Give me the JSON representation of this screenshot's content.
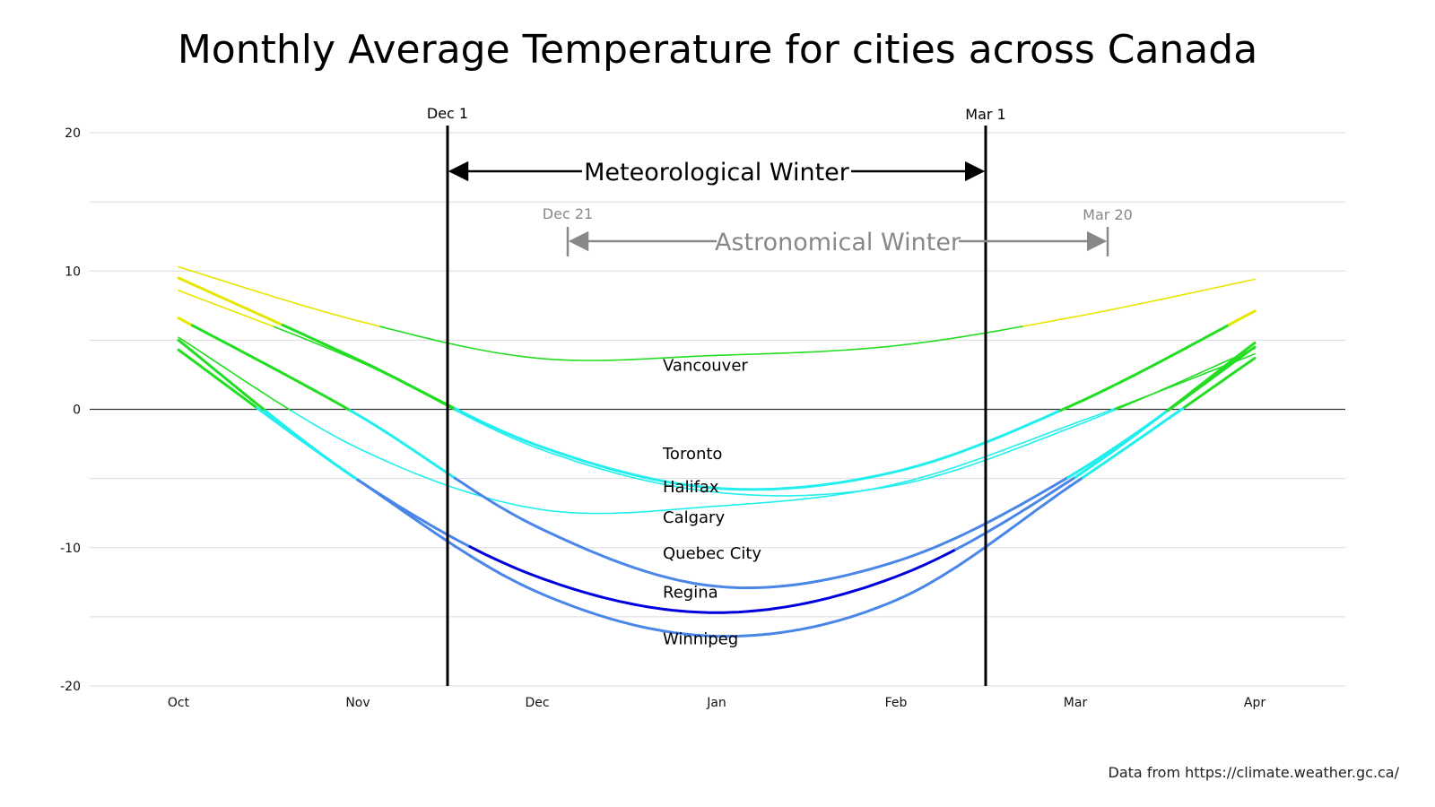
{
  "chart_data": {
    "type": "line",
    "title": "Monthly Average Temperature for cities across Canada",
    "x_categories": [
      "Oct",
      "Nov",
      "Dec",
      "Jan",
      "Feb",
      "Mar",
      "Apr"
    ],
    "ylim": [
      -20,
      20
    ],
    "y_ticks": [
      20,
      10,
      0,
      -10,
      -20
    ],
    "grid": true,
    "series": [
      {
        "name": "Vancouver",
        "values": [
          10.3,
          6.4,
          3.7,
          3.9,
          4.6,
          6.7,
          9.4
        ]
      },
      {
        "name": "Toronto",
        "values": [
          9.5,
          3.6,
          -2.6,
          -5.7,
          -4.5,
          0.4,
          7.1
        ]
      },
      {
        "name": "Halifax",
        "values": [
          8.6,
          3.5,
          -2.8,
          -6.0,
          -5.5,
          -1.2,
          4.4
        ]
      },
      {
        "name": "Calgary",
        "values": [
          5.2,
          -2.8,
          -7.2,
          -7.0,
          -5.4,
          -1.0,
          4.0
        ]
      },
      {
        "name": "Quebec City",
        "values": [
          6.6,
          -0.4,
          -8.5,
          -12.8,
          -11.0,
          -4.6,
          4.5
        ]
      },
      {
        "name": "Regina",
        "values": [
          5.0,
          -5.1,
          -12.1,
          -14.7,
          -12.1,
          -4.9,
          4.8
        ]
      },
      {
        "name": "Winnipeg",
        "values": [
          4.3,
          -5.1,
          -13.2,
          -16.4,
          -13.8,
          -5.3,
          3.7
        ]
      }
    ],
    "series_label_anchor": [
      {
        "name": "Vancouver",
        "y": 2.8
      },
      {
        "name": "Toronto",
        "y": -3.6
      },
      {
        "name": "Halifax",
        "y": -6.0
      },
      {
        "name": "Calgary",
        "y": -8.2
      },
      {
        "name": "Quebec City",
        "y": -10.8
      },
      {
        "name": "Regina",
        "y": -13.6
      },
      {
        "name": "Winnipeg",
        "y": -17.0
      }
    ],
    "annotations": {
      "meteorological": {
        "label": "Meteorological Winter",
        "start_label": "Dec 1",
        "end_label": "Mar 1",
        "start_x": 1.5,
        "end_x": 4.5
      },
      "astronomical": {
        "label": "Astronomical Winter",
        "start_label": "Dec 21",
        "end_label": "Mar 20",
        "start_x": 2.17,
        "end_x": 5.18
      }
    },
    "colors": {
      "warm": "#e6e600",
      "mild": "#22dd22",
      "cool": "#22eeee",
      "cold": "#4a86e8",
      "freezing": "#0000dd",
      "axis_zero": "#333333",
      "grid": "#dcdcdc",
      "astronomical": "#888888",
      "meteorological": "#000000"
    }
  },
  "footer": {
    "source": "Data from https://climate.weather.gc.ca/"
  }
}
